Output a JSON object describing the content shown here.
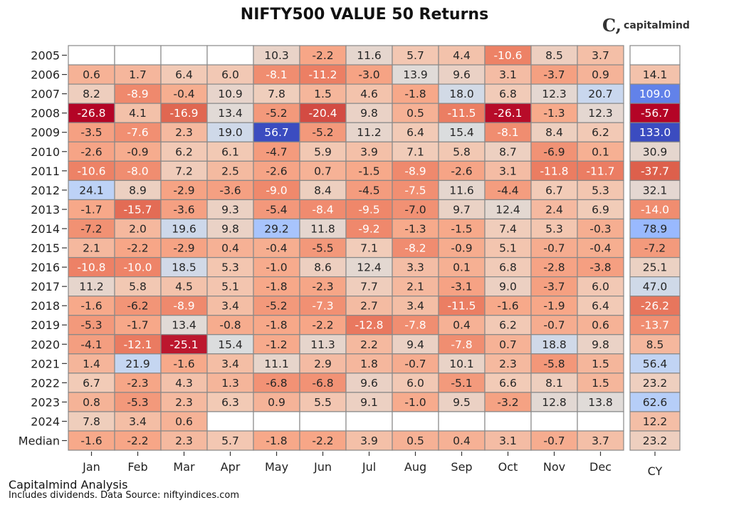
{
  "chart_data": {
    "type": "heatmap",
    "title": "NIFTY500 VALUE 50 Returns",
    "colormap": "coolwarm (reversed: negative red, positive blue)",
    "grid": true,
    "columns": [
      "Jan",
      "Feb",
      "Mar",
      "Apr",
      "May",
      "Jun",
      "Jul",
      "Aug",
      "Sep",
      "Oct",
      "Nov",
      "Dec"
    ],
    "total_column_label": "CY",
    "rows": [
      "2005",
      "2006",
      "2007",
      "2008",
      "2009",
      "2010",
      "2011",
      "2012",
      "2013",
      "2014",
      "2015",
      "2016",
      "2017",
      "2018",
      "2019",
      "2020",
      "2021",
      "2022",
      "2023",
      "2024",
      "Median"
    ],
    "values": [
      [
        null,
        null,
        null,
        null,
        10.3,
        -2.2,
        11.6,
        5.7,
        4.4,
        -10.6,
        8.5,
        3.7
      ],
      [
        0.6,
        1.7,
        6.4,
        6.0,
        -8.1,
        -11.2,
        -3.0,
        13.9,
        9.6,
        3.1,
        -3.7,
        0.9
      ],
      [
        8.2,
        -8.9,
        -0.4,
        10.9,
        7.8,
        1.5,
        4.6,
        -1.8,
        18.0,
        6.8,
        12.3,
        20.7
      ],
      [
        -26.8,
        4.1,
        -16.9,
        13.4,
        -5.2,
        -20.4,
        9.8,
        0.5,
        -11.5,
        -26.1,
        -1.3,
        12.3
      ],
      [
        -3.5,
        -7.6,
        2.3,
        19.0,
        56.7,
        -5.2,
        11.2,
        6.4,
        15.4,
        -8.1,
        8.4,
        6.2
      ],
      [
        -2.6,
        -0.9,
        6.2,
        6.1,
        -4.7,
        5.9,
        3.9,
        7.1,
        5.8,
        8.7,
        -6.9,
        0.1
      ],
      [
        -10.6,
        -8.0,
        7.2,
        2.5,
        -2.6,
        0.7,
        -1.5,
        -8.9,
        -2.6,
        3.1,
        -11.8,
        -11.7
      ],
      [
        24.1,
        8.9,
        -2.9,
        -3.6,
        -9.0,
        8.4,
        -4.5,
        -7.5,
        11.6,
        -4.4,
        6.7,
        5.3
      ],
      [
        -1.7,
        -15.7,
        -3.6,
        9.3,
        -5.4,
        -8.4,
        -9.5,
        -7.0,
        9.7,
        12.4,
        2.4,
        6.9
      ],
      [
        -7.2,
        2.0,
        19.6,
        9.8,
        29.2,
        11.8,
        -9.2,
        -1.3,
        -1.5,
        7.4,
        5.3,
        -0.3
      ],
      [
        2.1,
        -2.2,
        -2.9,
        0.4,
        -0.4,
        -5.5,
        7.1,
        -8.2,
        -0.9,
        5.1,
        -0.7,
        -0.4
      ],
      [
        -10.8,
        -10.0,
        18.5,
        5.3,
        -1.0,
        8.6,
        12.4,
        3.3,
        0.1,
        6.8,
        -2.8,
        -3.8
      ],
      [
        11.2,
        5.8,
        4.5,
        5.1,
        -1.8,
        -2.3,
        7.7,
        2.1,
        -3.1,
        9.0,
        -3.7,
        6.0
      ],
      [
        -1.6,
        -6.2,
        -8.9,
        3.4,
        -5.2,
        -7.3,
        2.7,
        3.4,
        -11.5,
        -1.6,
        -1.9,
        6.4
      ],
      [
        -5.3,
        -1.7,
        13.4,
        -0.8,
        -1.8,
        -2.2,
        -12.8,
        -7.8,
        0.4,
        6.2,
        -0.7,
        0.6
      ],
      [
        -4.1,
        -12.1,
        -25.1,
        15.4,
        -1.2,
        11.3,
        2.2,
        9.4,
        -7.8,
        0.7,
        18.8,
        9.8
      ],
      [
        1.4,
        21.9,
        -1.6,
        3.4,
        11.1,
        2.9,
        1.8,
        -0.7,
        10.1,
        2.3,
        -5.8,
        1.5
      ],
      [
        6.7,
        -2.3,
        4.3,
        1.3,
        -6.8,
        -6.8,
        9.6,
        6.0,
        -5.1,
        6.6,
        8.1,
        1.5
      ],
      [
        0.8,
        -5.3,
        2.3,
        6.3,
        0.9,
        5.5,
        9.1,
        -1.0,
        9.5,
        -3.2,
        12.8,
        13.8
      ],
      [
        7.8,
        3.4,
        0.6,
        null,
        null,
        null,
        null,
        null,
        null,
        null,
        null,
        null
      ],
      [
        -1.6,
        -2.2,
        2.3,
        5.7,
        -1.8,
        -2.2,
        3.9,
        0.5,
        0.4,
        3.1,
        -0.7,
        3.7
      ]
    ],
    "cy_values": [
      null,
      14.1,
      109.0,
      -56.7,
      133.0,
      30.9,
      -37.7,
      32.1,
      -14.0,
      78.9,
      -7.2,
      25.1,
      47.0,
      -26.2,
      -13.7,
      8.5,
      56.4,
      23.2,
      62.6,
      12.2,
      23.2
    ]
  },
  "branding": {
    "logo_text": "capitalmind"
  },
  "footer": {
    "line1": "Capitalmind Analysis",
    "line2": "Includes dividends. Data Source: niftyindices.com"
  }
}
